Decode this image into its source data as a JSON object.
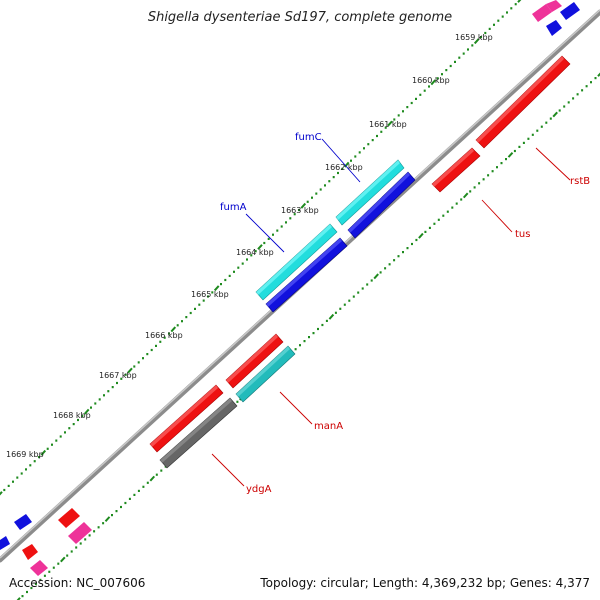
{
  "title": "Shigella dysenteriae Sd197, complete genome",
  "footer": {
    "accession": "Accession: NC_007606",
    "summary": "Topology: circular; Length: 4,369,232 bp; Genes: 4,377"
  },
  "ticks": [
    "1659 kbp",
    "1660 kbp",
    "1661 kbp",
    "1662 kbp",
    "1663 kbp",
    "1664 kbp",
    "1665 kbp",
    "1666 kbp",
    "1667 kbp",
    "1668 kbp",
    "1669 kbp"
  ],
  "gene_labels": [
    {
      "name": "fumC",
      "color": "#0000cc"
    },
    {
      "name": "fumA",
      "color": "#0000cc"
    },
    {
      "name": "rstB",
      "color": "#cc0000"
    },
    {
      "name": "tus",
      "color": "#cc0000"
    },
    {
      "name": "manA",
      "color": "#cc0000"
    },
    {
      "name": "ydgA",
      "color": "#cc0000"
    }
  ],
  "colors": {
    "backbone": "#8c8c8c",
    "tick": "#1e8a1e",
    "red": "#ee1111",
    "blue": "#1111dd",
    "cyan": "#22dddd",
    "teal": "#22bbbb",
    "gray": "#666666",
    "pink": "#ee3399"
  }
}
